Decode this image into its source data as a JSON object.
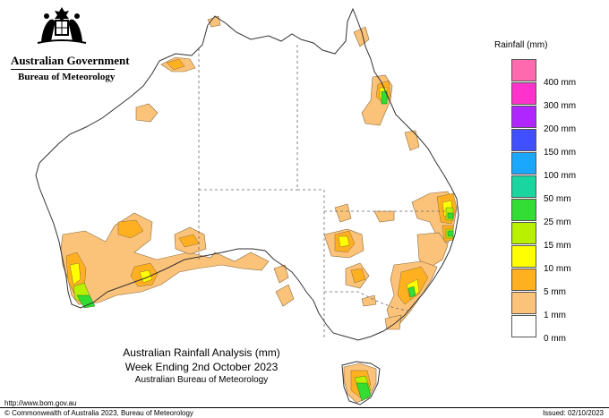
{
  "header": {
    "government": "Australian Government",
    "bureau": "Bureau of Meteorology"
  },
  "legend": {
    "title": "Rainfall (mm)",
    "items": [
      {
        "label": "",
        "color": "#ff6aae"
      },
      {
        "label": "400 mm",
        "color": "#ff33cc"
      },
      {
        "label": "300 mm",
        "color": "#b026ff"
      },
      {
        "label": "200 mm",
        "color": "#4050ff"
      },
      {
        "label": "150 mm",
        "color": "#1aa8ff"
      },
      {
        "label": "100 mm",
        "color": "#19d6a0"
      },
      {
        "label": "50 mm",
        "color": "#33dd33"
      },
      {
        "label": "25 mm",
        "color": "#b8f000"
      },
      {
        "label": "15 mm",
        "color": "#ffff00"
      },
      {
        "label": "10 mm",
        "color": "#ffb020"
      },
      {
        "label": "5 mm",
        "color": "#fbc37a"
      },
      {
        "label": "1 mm",
        "color": "#ffffff"
      },
      {
        "label": "0 mm",
        "color": ""
      }
    ]
  },
  "map_title": {
    "line1": "Australian Rainfall Analysis (mm)",
    "line2": "Week Ending 2nd October 2023",
    "line3": "Australian Bureau of Meteorology"
  },
  "footer": {
    "url": "http://www.bom.gov.au",
    "copyright": "© Commonwealth of Australia 2023, Bureau of Meteorology",
    "issued": "Issued: 02/10/2023"
  },
  "colors": {
    "light_orange": "#fbc37a",
    "orange": "#ffb020",
    "yellow": "#ffff00",
    "yellow_green": "#b8f000",
    "green": "#33dd33"
  }
}
